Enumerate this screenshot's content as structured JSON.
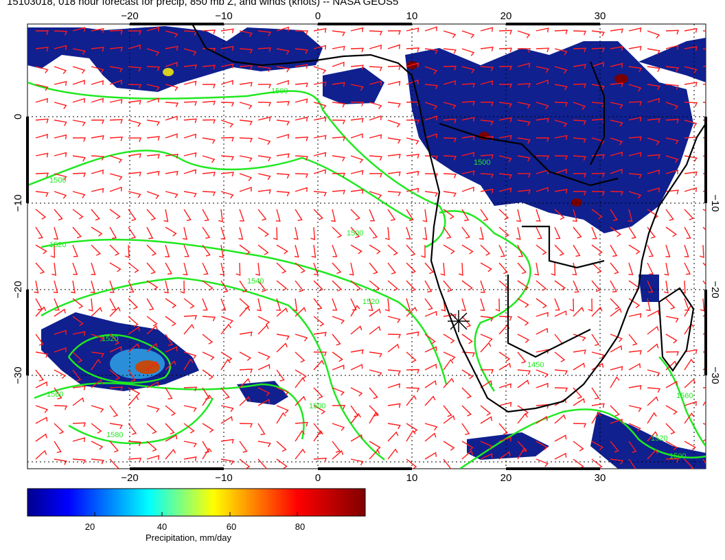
{
  "title": "15103018, 018 hour forecast for precip, 850 mb Z, and winds (knots) -- NASA GEOS5",
  "map": {
    "longitude_ticks": [
      "−20",
      "−10",
      "0",
      "10",
      "20",
      "30"
    ],
    "latitude_ticks": [
      "0",
      "−10",
      "−20",
      "−30"
    ],
    "extent": {
      "lon": [
        -30,
        42
      ],
      "lat": [
        -41,
        11
      ]
    },
    "contour_labels": [
      "1500",
      "1500",
      "1500",
      "1520",
      "1520",
      "1540",
      "1520",
      "1560",
      "1580",
      "1500",
      "1450",
      "1500",
      "1500",
      "1520",
      "1560"
    ],
    "colors": {
      "precip_low": "#0a1a8c",
      "precip_mid": "#39c0c6",
      "precip_high": "#7a0000",
      "contours": "#1fe81f",
      "wind_barbs": "#ff1a1a",
      "coastline": "#000000"
    }
  },
  "colorbar": {
    "ticks": [
      "20",
      "40",
      "60",
      "80"
    ],
    "label": "Precipitation, mm/day",
    "range": [
      0,
      100
    ]
  }
}
